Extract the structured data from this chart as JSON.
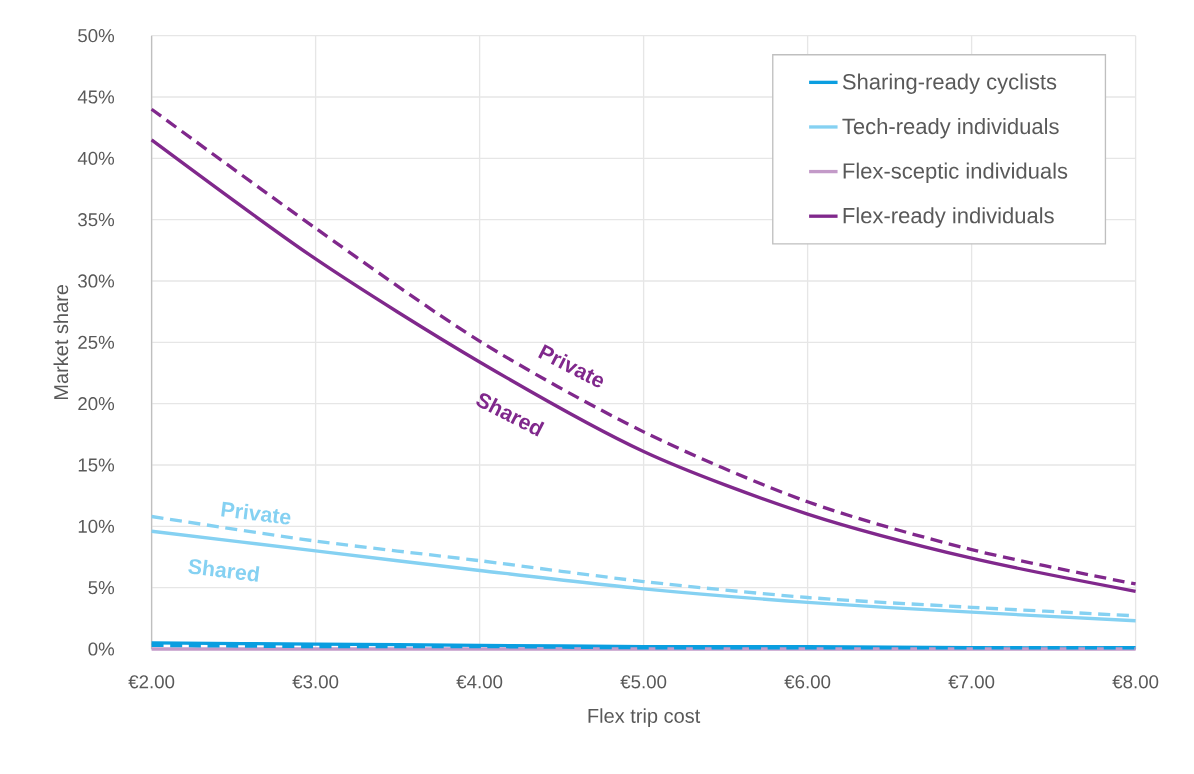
{
  "chart_data": {
    "type": "line",
    "xlabel": "Flex trip cost",
    "ylabel": "Market share",
    "x": [
      2,
      3,
      4,
      5,
      6,
      7,
      8
    ],
    "series": [
      {
        "name": "Sharing-ready cyclists",
        "color": "#0a9ee0",
        "line_style": "solid",
        "values": [
          0.5,
          0.4,
          0.3,
          0.2,
          0.2,
          0.1,
          0.1
        ]
      },
      {
        "name": "Tech-ready individuals",
        "color": "#85d1f2",
        "line_style": "solid",
        "values": [
          9.6,
          8.0,
          6.4,
          4.9,
          3.8,
          3.0,
          2.3
        ]
      },
      {
        "name": "Flex-sceptic individuals",
        "color": "#c39ac8",
        "line_style": "solid",
        "values": [
          0,
          0,
          0,
          0,
          0,
          0,
          0
        ]
      },
      {
        "name": "Flex-ready individuals",
        "color": "#80288c",
        "line_style": "solid",
        "values": [
          41.5,
          31.8,
          23.4,
          16.1,
          11.0,
          7.4,
          4.7
        ]
      },
      {
        "color": "#0a9ee0",
        "line_style": "dashed",
        "values": [
          0.3,
          0.2,
          0.2,
          0.1,
          0.1,
          0.1,
          0.1
        ]
      },
      {
        "color": "#85d1f2",
        "line_style": "dashed",
        "values": [
          10.8,
          8.8,
          7.2,
          5.5,
          4.2,
          3.4,
          2.7
        ]
      },
      {
        "color": "#80288c",
        "line_style": "dashed",
        "values": [
          44.0,
          34.3,
          25.1,
          17.7,
          12.0,
          8.1,
          5.3
        ]
      }
    ],
    "xlim": [
      2,
      8
    ],
    "xticks": [
      {
        "value": 2,
        "label": "€2.00"
      },
      {
        "value": 3,
        "label": "€3.00"
      },
      {
        "value": 4,
        "label": "€4.00"
      },
      {
        "value": 5,
        "label": "€5.00"
      },
      {
        "value": 6,
        "label": "€6.00"
      },
      {
        "value": 7,
        "label": "€7.00"
      },
      {
        "value": 8,
        "label": "€8.00"
      }
    ],
    "ylim": [
      0,
      50
    ],
    "yticks": [
      {
        "value": 0,
        "label": "0%"
      },
      {
        "value": 5,
        "label": "5%"
      },
      {
        "value": 10,
        "label": "10%"
      },
      {
        "value": 15,
        "label": "15%"
      },
      {
        "value": 20,
        "label": "20%"
      },
      {
        "value": 25,
        "label": "25%"
      },
      {
        "value": 30,
        "label": "30%"
      },
      {
        "value": 35,
        "label": "35%"
      },
      {
        "value": 40,
        "label": "40%"
      },
      {
        "value": 45,
        "label": "45%"
      },
      {
        "value": 50,
        "label": "50%"
      }
    ],
    "annotations": [
      "Private",
      "Shared",
      "Private",
      "Shared"
    ],
    "grid": true,
    "legend": "top right",
    "marker": "none"
  }
}
